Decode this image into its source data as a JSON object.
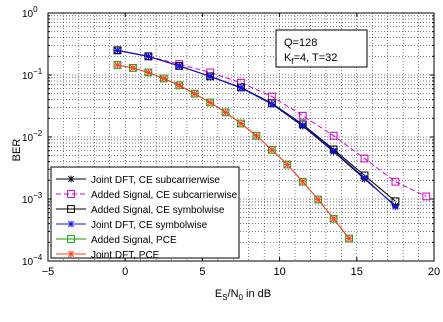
{
  "chart_data": {
    "type": "line",
    "xlabel_main": "E",
    "xlabel_sub1": "S",
    "xlabel_mid": "/N",
    "xlabel_sub2": "0",
    "xlabel_tail": " in dB",
    "ylabel": "BER",
    "xlim": [
      -5,
      20
    ],
    "ylim_log10": [
      -4,
      0
    ],
    "y_scale": "log",
    "grid": true,
    "x_ticks": [
      "−5",
      "0",
      "5",
      "10",
      "15",
      "20"
    ],
    "y_ticks": [
      {
        "base": "10",
        "exp": "0"
      },
      {
        "base": "10",
        "exp": "−1"
      },
      {
        "base": "10",
        "exp": "−2"
      },
      {
        "base": "10",
        "exp": "−3"
      },
      {
        "base": "10",
        "exp": "−4"
      }
    ],
    "annotation": {
      "line1": "Q=128",
      "line2_main": "K",
      "line2_sub": "f",
      "line2_tail": "=4, T=32"
    },
    "legend_position": "bottom-left",
    "series": [
      {
        "name": "Joint DFT, CE subcarrierwise",
        "color": "#000000",
        "dash": "none",
        "marker": "asterisk",
        "x": [
          -0.5,
          1.5,
          3.5,
          5.5,
          7.5,
          9.5,
          11.5,
          13.5,
          15.5,
          17.5
        ],
        "y": [
          0.25,
          0.2,
          0.14,
          0.095,
          0.062,
          0.034,
          0.015,
          0.0058,
          0.0021,
          0.00078
        ]
      },
      {
        "name": "Added Signal, CE subcarrierwise",
        "color": "#d000d0",
        "dash": "5,3",
        "marker": "square",
        "x": [
          -0.5,
          1.5,
          3.5,
          5.5,
          7.5,
          9.5,
          11.5,
          13.5,
          15.5,
          17.5,
          19.5
        ],
        "y": [
          0.25,
          0.2,
          0.15,
          0.11,
          0.075,
          0.045,
          0.022,
          0.0105,
          0.0045,
          0.0019,
          0.0011
        ]
      },
      {
        "name": "Added Signal, CE symbolwise",
        "color": "#000000",
        "dash": "none",
        "marker": "square",
        "x": [
          -0.5,
          1.5,
          3.5,
          5.5,
          7.5,
          9.5,
          11.5,
          13.5,
          15.5,
          17.5
        ],
        "y": [
          0.25,
          0.2,
          0.14,
          0.095,
          0.063,
          0.035,
          0.016,
          0.0063,
          0.0024,
          0.00092
        ]
      },
      {
        "name": "Joint DFT, CE symbolwise",
        "color": "#1010ee",
        "dash": "none",
        "marker": "asterisk",
        "x": [
          -0.5,
          1.5,
          3.5,
          5.5,
          7.5,
          9.5,
          11.5,
          13.5,
          15.5,
          17.5
        ],
        "y": [
          0.25,
          0.2,
          0.14,
          0.095,
          0.062,
          0.034,
          0.0155,
          0.006,
          0.0022,
          0.00075
        ]
      },
      {
        "name": "Added Signal, PCE",
        "color": "#10a010",
        "dash": "none",
        "marker": "square",
        "x": [
          -0.5,
          0.5,
          1.5,
          2.5,
          3.5,
          4.5,
          5.5,
          6.5,
          7.5,
          8.5,
          9.5,
          10.5,
          11.5,
          12.5,
          13.5,
          14.5
        ],
        "y": [
          0.145,
          0.13,
          0.11,
          0.088,
          0.068,
          0.05,
          0.036,
          0.025,
          0.0165,
          0.0105,
          0.0062,
          0.0036,
          0.0019,
          0.00098,
          0.00048,
          0.00023
        ]
      },
      {
        "name": "Joint DFT, PCE",
        "color": "#ff4020",
        "dash": "none",
        "marker": "asterisk",
        "x": [
          -0.5,
          0.5,
          1.5,
          2.5,
          3.5,
          4.5,
          5.5,
          6.5,
          7.5,
          8.5,
          9.5,
          10.5,
          11.5,
          12.5,
          13.5,
          14.5
        ],
        "y": [
          0.145,
          0.13,
          0.11,
          0.088,
          0.068,
          0.05,
          0.036,
          0.025,
          0.0165,
          0.0105,
          0.0062,
          0.0036,
          0.0019,
          0.00098,
          0.00048,
          0.00023
        ]
      }
    ]
  }
}
